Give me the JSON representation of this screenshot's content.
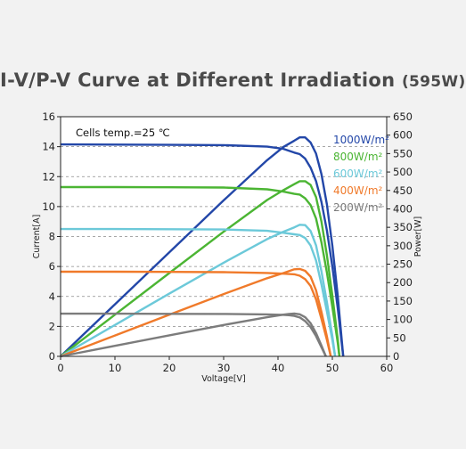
{
  "chart_data": {
    "type": "line",
    "title": "I-V/P-V Curve at Different Irradiation",
    "title_suffix": "(595W)",
    "annotation": "Cells temp.=25 ℃",
    "xlabel": "Voltage[V]",
    "ylabel_left": "Current[A]",
    "ylabel_right": "Power[W]",
    "xlim": [
      0,
      60
    ],
    "ylim_left": [
      0,
      16
    ],
    "ylim_right": [
      0,
      650
    ],
    "x_ticks": [
      0,
      10,
      20,
      30,
      40,
      50,
      60
    ],
    "y_ticks_left": [
      0,
      2,
      4,
      6,
      8,
      10,
      12,
      14,
      16
    ],
    "y_ticks_right": [
      0,
      50,
      100,
      150,
      200,
      250,
      300,
      350,
      400,
      450,
      500,
      550,
      600,
      650
    ],
    "grid": "horizontal dashed at left-axis ticks",
    "legend_position": "top-right",
    "series": [
      {
        "name": "1000W/m²",
        "color": "#2347a8",
        "isc": 14.15,
        "voc": 52.0,
        "vmp": 44.0,
        "imp": 13.5,
        "pmax": 595,
        "iv": [
          [
            0,
            14.15
          ],
          [
            10,
            14.14
          ],
          [
            20,
            14.12
          ],
          [
            30,
            14.1
          ],
          [
            38,
            14.0
          ],
          [
            41,
            13.85
          ],
          [
            43,
            13.6
          ],
          [
            44,
            13.5
          ],
          [
            45,
            13.2
          ],
          [
            46,
            12.6
          ],
          [
            47,
            11.7
          ],
          [
            48,
            10.3
          ],
          [
            49,
            8.4
          ],
          [
            50,
            6.0
          ],
          [
            51,
            3.2
          ],
          [
            52,
            0
          ]
        ],
        "pv": [
          [
            0,
            0
          ],
          [
            10,
            141
          ],
          [
            20,
            282
          ],
          [
            30,
            423
          ],
          [
            38,
            532
          ],
          [
            41,
            568
          ],
          [
            43,
            585
          ],
          [
            44,
            594
          ],
          [
            45,
            594
          ],
          [
            46,
            580
          ],
          [
            47,
            550
          ],
          [
            48,
            494
          ],
          [
            49,
            412
          ],
          [
            50,
            300
          ],
          [
            51,
            163
          ],
          [
            52,
            0
          ]
        ]
      },
      {
        "name": "800W/m²",
        "color": "#4bb533",
        "isc": 11.3,
        "voc": 51.3,
        "vmp": 44.0,
        "imp": 10.8,
        "pmax": 475,
        "iv": [
          [
            0,
            11.3
          ],
          [
            10,
            11.3
          ],
          [
            20,
            11.29
          ],
          [
            30,
            11.27
          ],
          [
            38,
            11.15
          ],
          [
            41,
            11.0
          ],
          [
            43,
            10.85
          ],
          [
            44,
            10.8
          ],
          [
            45,
            10.55
          ],
          [
            46,
            10.1
          ],
          [
            47,
            9.2
          ],
          [
            48,
            7.6
          ],
          [
            49,
            5.6
          ],
          [
            50,
            3.3
          ],
          [
            51,
            0.9
          ],
          [
            51.3,
            0
          ]
        ],
        "pv": [
          [
            0,
            0
          ],
          [
            10,
            113
          ],
          [
            20,
            226
          ],
          [
            30,
            338
          ],
          [
            38,
            424
          ],
          [
            41,
            451
          ],
          [
            43,
            467
          ],
          [
            44,
            475
          ],
          [
            45,
            475
          ],
          [
            46,
            465
          ],
          [
            47,
            432
          ],
          [
            48,
            365
          ],
          [
            49,
            274
          ],
          [
            50,
            165
          ],
          [
            51,
            46
          ],
          [
            51.3,
            0
          ]
        ]
      },
      {
        "name": "600W/m²",
        "color": "#6cc9d9",
        "isc": 8.5,
        "voc": 50.5,
        "vmp": 44.0,
        "imp": 8.1,
        "pmax": 357,
        "iv": [
          [
            0,
            8.5
          ],
          [
            10,
            8.5
          ],
          [
            20,
            8.49
          ],
          [
            30,
            8.47
          ],
          [
            38,
            8.38
          ],
          [
            41,
            8.25
          ],
          [
            43,
            8.15
          ],
          [
            44,
            8.1
          ],
          [
            45,
            7.9
          ],
          [
            46,
            7.4
          ],
          [
            47,
            6.4
          ],
          [
            48,
            4.8
          ],
          [
            49,
            3.0
          ],
          [
            50,
            1.1
          ],
          [
            50.5,
            0
          ]
        ],
        "pv": [
          [
            0,
            0
          ],
          [
            10,
            85
          ],
          [
            20,
            170
          ],
          [
            30,
            254
          ],
          [
            38,
            318
          ],
          [
            41,
            338
          ],
          [
            43,
            350
          ],
          [
            44,
            357
          ],
          [
            45,
            356
          ],
          [
            46,
            340
          ],
          [
            47,
            301
          ],
          [
            48,
            230
          ],
          [
            49,
            147
          ],
          [
            50,
            55
          ],
          [
            50.5,
            0
          ]
        ]
      },
      {
        "name": "400W/m²",
        "color": "#f07a2a",
        "isc": 5.65,
        "voc": 49.7,
        "vmp": 43.0,
        "imp": 5.5,
        "pmax": 236,
        "iv": [
          [
            0,
            5.65
          ],
          [
            10,
            5.65
          ],
          [
            20,
            5.64
          ],
          [
            30,
            5.62
          ],
          [
            38,
            5.57
          ],
          [
            41,
            5.52
          ],
          [
            43,
            5.48
          ],
          [
            44,
            5.38
          ],
          [
            45,
            5.15
          ],
          [
            46,
            4.7
          ],
          [
            47,
            3.8
          ],
          [
            48,
            2.5
          ],
          [
            49,
            1.1
          ],
          [
            49.7,
            0
          ]
        ],
        "pv": [
          [
            0,
            0
          ],
          [
            10,
            56.5
          ],
          [
            20,
            113
          ],
          [
            30,
            169
          ],
          [
            38,
            212
          ],
          [
            41,
            226
          ],
          [
            43,
            236
          ],
          [
            44,
            237
          ],
          [
            45,
            232
          ],
          [
            46,
            216
          ],
          [
            47,
            179
          ],
          [
            48,
            120
          ],
          [
            49,
            54
          ],
          [
            49.7,
            0
          ]
        ]
      },
      {
        "name": "200W/m²",
        "color": "#7c7c7c",
        "isc": 2.85,
        "voc": 48.8,
        "vmp": 42.0,
        "imp": 2.75,
        "pmax": 115,
        "iv": [
          [
            0,
            2.85
          ],
          [
            10,
            2.85
          ],
          [
            20,
            2.84
          ],
          [
            30,
            2.83
          ],
          [
            38,
            2.8
          ],
          [
            41,
            2.77
          ],
          [
            42,
            2.75
          ],
          [
            43,
            2.7
          ],
          [
            44,
            2.6
          ],
          [
            45,
            2.35
          ],
          [
            46,
            1.95
          ],
          [
            47,
            1.35
          ],
          [
            48,
            0.6
          ],
          [
            48.8,
            0
          ]
        ],
        "pv": [
          [
            0,
            0
          ],
          [
            10,
            28.5
          ],
          [
            20,
            57
          ],
          [
            30,
            85
          ],
          [
            38,
            106
          ],
          [
            41,
            113
          ],
          [
            42,
            115
          ],
          [
            43,
            116
          ],
          [
            44,
            114
          ],
          [
            45,
            106
          ],
          [
            46,
            90
          ],
          [
            47,
            63
          ],
          [
            48,
            29
          ],
          [
            48.8,
            0
          ]
        ]
      }
    ]
  }
}
